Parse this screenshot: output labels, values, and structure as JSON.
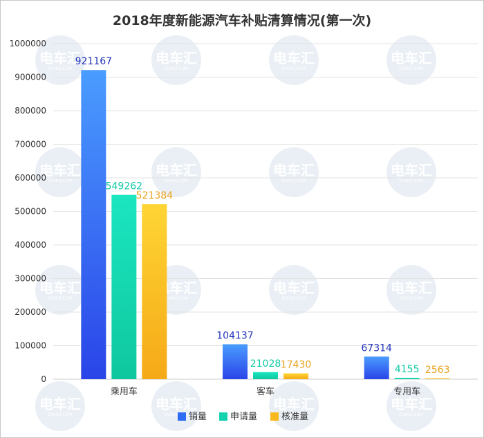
{
  "chart_data": {
    "type": "bar",
    "title": "2018年度新能源汽车补贴清算情况(第一次)",
    "categories": [
      "乘用车",
      "客车",
      "专用车"
    ],
    "series": [
      {
        "name": "销量",
        "color": "#2f6cf5",
        "values": [
          921167,
          104137,
          67314
        ]
      },
      {
        "name": "申请量",
        "color": "#12d3ae",
        "values": [
          549262,
          21028,
          4155
        ]
      },
      {
        "name": "核准量",
        "color": "#f7b91d",
        "values": [
          521384,
          17430,
          2563
        ]
      }
    ],
    "ylim": [
      0,
      1000000
    ],
    "yticks": [
      0,
      100000,
      200000,
      300000,
      400000,
      500000,
      600000,
      700000,
      800000,
      900000,
      1000000
    ],
    "grid": true,
    "legend": "bottom",
    "label_colors": [
      "#2233bb",
      "#10c9a5",
      "#e8a21c"
    ]
  },
  "watermark": {
    "logo_text": "电车汇",
    "sub_text": "EVHUI.COM"
  }
}
